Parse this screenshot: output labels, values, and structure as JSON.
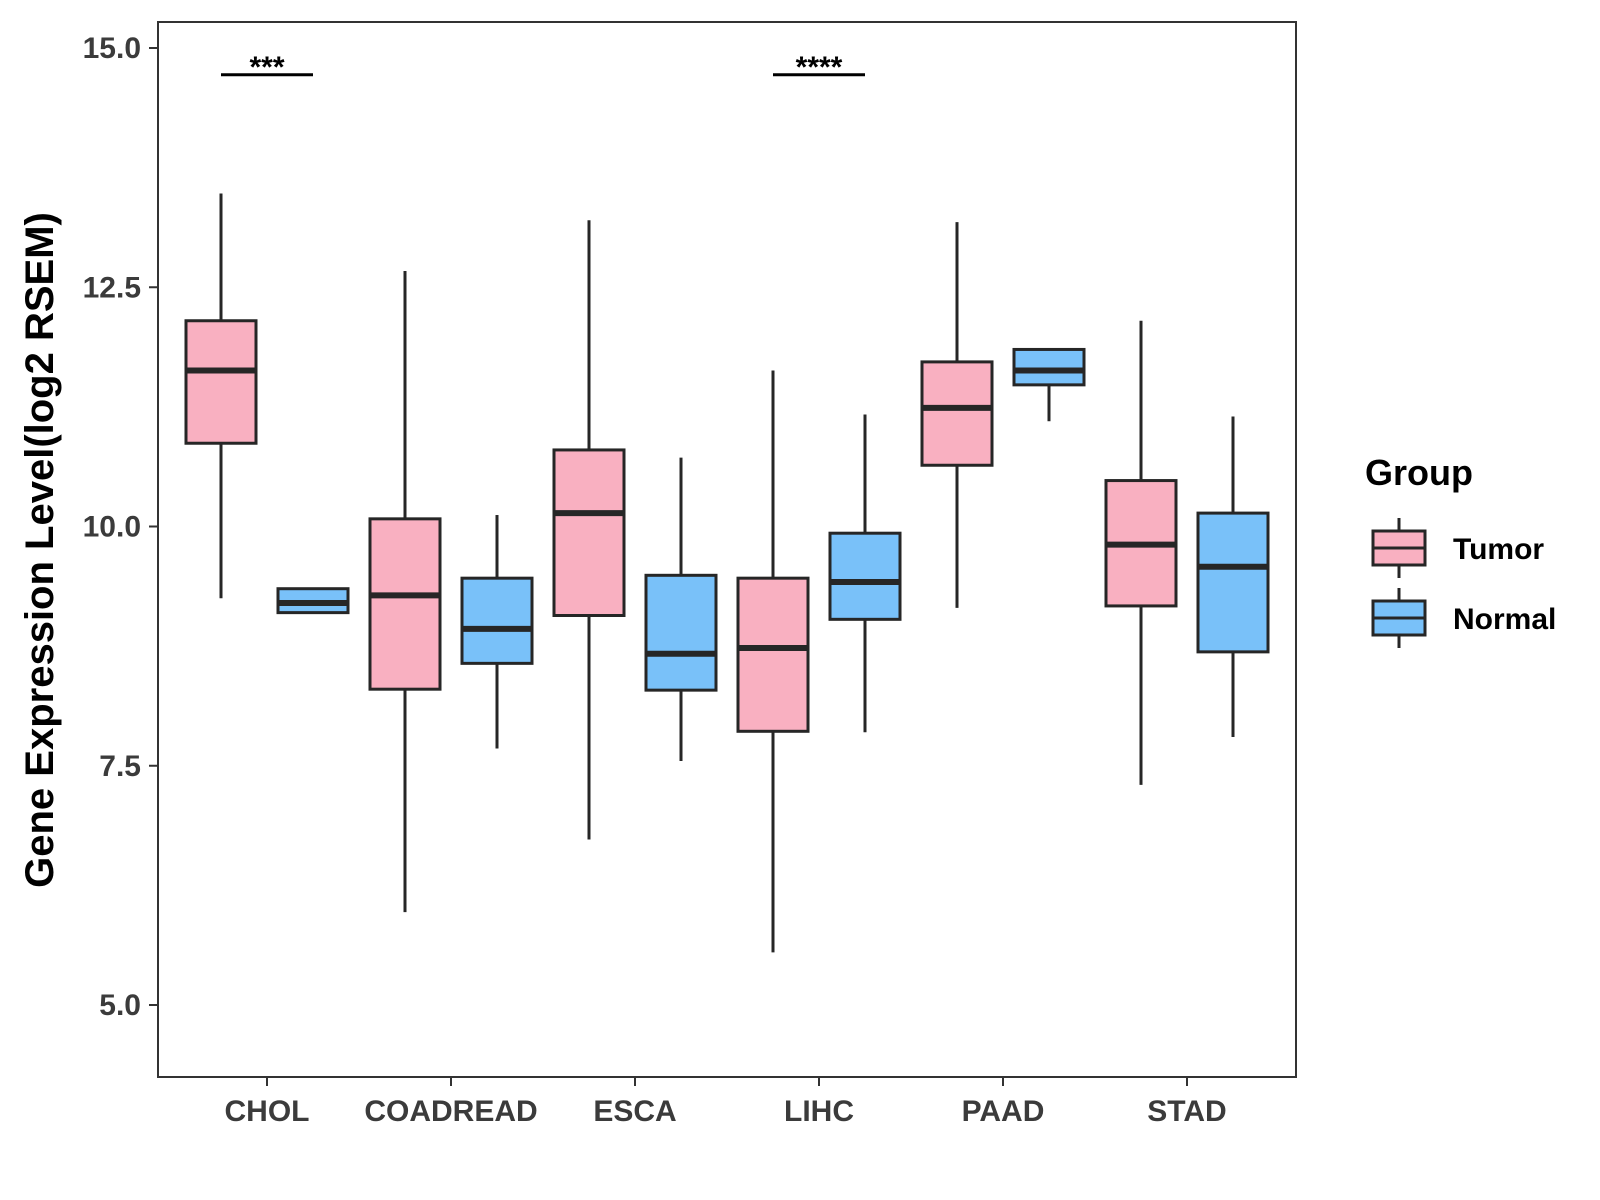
{
  "chart_data": {
    "type": "boxplot",
    "title": "",
    "xlabel": "",
    "ylabel": "Gene Expression Level(log2 RSEM)",
    "ylim": [
      4.25,
      15.25
    ],
    "yticks": [
      5.0,
      7.5,
      10.0,
      12.5,
      15.0
    ],
    "ytick_labels": [
      "5.0",
      "7.5",
      "10.0",
      "12.5",
      "15.0"
    ],
    "categories": [
      "CHOL",
      "COADREAD",
      "ESCA",
      "LIHC",
      "PAAD",
      "STAD"
    ],
    "legend": {
      "title": "Group",
      "position": "right",
      "entries": [
        {
          "name": "Tumor",
          "color": "#f9b0c1"
        },
        {
          "name": "Normal",
          "color": "#79c1f9"
        }
      ]
    },
    "series": [
      {
        "name": "Tumor",
        "color": "#f9b0c1",
        "boxes": [
          {
            "category": "CHOL",
            "min": 9.25,
            "q1": 10.87,
            "median": 11.63,
            "q3": 12.15,
            "max": 13.48
          },
          {
            "category": "COADREAD",
            "min": 5.97,
            "q1": 8.3,
            "median": 9.28,
            "q3": 10.08,
            "max": 12.67
          },
          {
            "category": "ESCA",
            "min": 6.73,
            "q1": 9.07,
            "median": 10.14,
            "q3": 10.8,
            "max": 13.2
          },
          {
            "category": "LIHC",
            "min": 5.55,
            "q1": 7.86,
            "median": 8.73,
            "q3": 9.46,
            "max": 11.63
          },
          {
            "category": "PAAD",
            "min": 9.15,
            "q1": 10.64,
            "median": 11.24,
            "q3": 11.72,
            "max": 13.18
          },
          {
            "category": "STAD",
            "min": 7.3,
            "q1": 9.17,
            "median": 9.81,
            "q3": 10.48,
            "max": 12.15
          }
        ]
      },
      {
        "name": "Normal",
        "color": "#79c1f9",
        "boxes": [
          {
            "category": "CHOL",
            "min": 9.1,
            "q1": 9.1,
            "median": 9.2,
            "q3": 9.35,
            "max": 9.35
          },
          {
            "category": "COADREAD",
            "min": 7.68,
            "q1": 8.57,
            "median": 8.93,
            "q3": 9.46,
            "max": 10.12
          },
          {
            "category": "ESCA",
            "min": 7.55,
            "q1": 8.29,
            "median": 8.67,
            "q3": 9.49,
            "max": 10.72
          },
          {
            "category": "LIHC",
            "min": 7.85,
            "q1": 9.03,
            "median": 9.42,
            "q3": 9.93,
            "max": 11.17
          },
          {
            "category": "PAAD",
            "min": 11.1,
            "q1": 11.48,
            "median": 11.63,
            "q3": 11.85,
            "max": 11.85
          },
          {
            "category": "STAD",
            "min": 7.8,
            "q1": 8.69,
            "median": 9.58,
            "q3": 10.14,
            "max": 11.15
          }
        ]
      }
    ],
    "annotations": [
      {
        "category": "CHOL",
        "text": "***",
        "value": 14.72
      },
      {
        "category": "LIHC",
        "text": "****",
        "value": 14.72
      }
    ]
  }
}
